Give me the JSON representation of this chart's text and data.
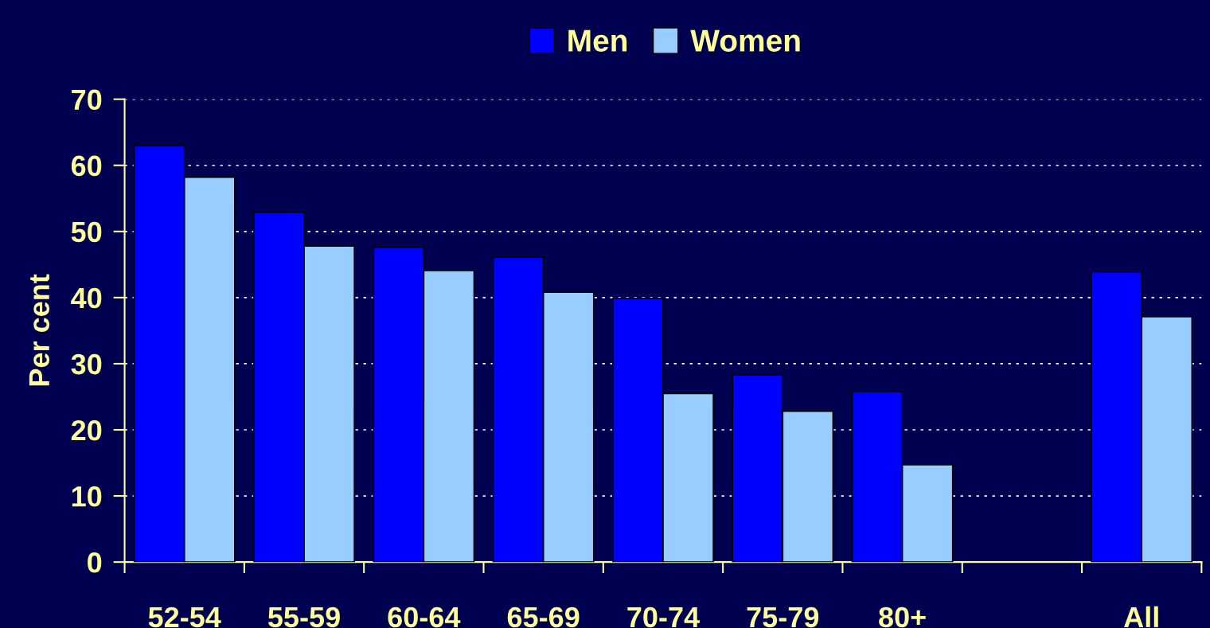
{
  "chart_data": {
    "type": "bar",
    "ylabel": "Per cent",
    "categories": [
      "52-54",
      "55-59",
      "60-64",
      "65-69",
      "70-74",
      "75-79",
      "80+",
      null,
      "All"
    ],
    "series": [
      {
        "name": "Men",
        "color": "#0000ff",
        "values": [
          63.0,
          52.9,
          47.6,
          46.1,
          39.9,
          28.3,
          25.8,
          null,
          43.9
        ]
      },
      {
        "name": "Women",
        "color": "#99ccff",
        "values": [
          58.2,
          47.8,
          44.1,
          40.8,
          25.5,
          22.8,
          14.7,
          null,
          37.1
        ]
      }
    ],
    "ylim": [
      0,
      70
    ],
    "yticks": [
      0,
      10,
      20,
      30,
      40,
      50,
      60,
      70
    ],
    "grid": "y",
    "legend": "top"
  }
}
